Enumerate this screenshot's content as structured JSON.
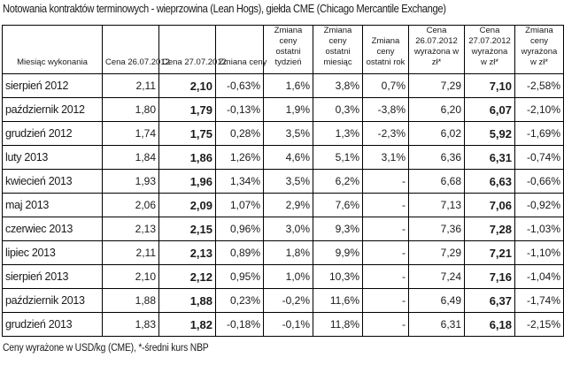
{
  "title": "Notowania kontraktów terminowych - wieprzowina (Lean Hogs), giełda CME (Chicago Mercantile Exchange)",
  "headers": [
    "Miesiąc wykonania",
    "Cena 26.07.2012",
    "Cena 27.07.2012",
    "Zmiana ceny",
    "Zmiana ceny ostatni tydzień",
    "Zmiana ceny ostatni miesiąc",
    "Zmiana ceny ostatni rok",
    "Cena 26.07.2012 wyrażona w zł*",
    "Cena 27.07.2012 wyrażona w zł*",
    "Zmiana ceny wyrażona w zł*"
  ],
  "rows": [
    [
      "sierpień 2012",
      "2,11",
      "2,10",
      "-0,63%",
      "1,6%",
      "3,8%",
      "0,7%",
      "7,29",
      "7,10",
      "-2,58%"
    ],
    [
      "październik 2012",
      "1,80",
      "1,79",
      "-0,13%",
      "1,9%",
      "0,3%",
      "-3,8%",
      "6,20",
      "6,07",
      "-2,10%"
    ],
    [
      "grudzień 2012",
      "1,74",
      "1,75",
      "0,28%",
      "3,5%",
      "1,3%",
      "-2,3%",
      "6,02",
      "5,92",
      "-1,69%"
    ],
    [
      "luty 2013",
      "1,84",
      "1,86",
      "1,26%",
      "4,6%",
      "5,1%",
      "3,1%",
      "6,36",
      "6,31",
      "-0,74%"
    ],
    [
      "kwiecień 2013",
      "1,93",
      "1,96",
      "1,34%",
      "3,5%",
      "6,2%",
      "-",
      "6,68",
      "6,63",
      "-0,66%"
    ],
    [
      "maj 2013",
      "2,06",
      "2,09",
      "1,07%",
      "2,9%",
      "7,6%",
      "-",
      "7,13",
      "7,06",
      "-0,92%"
    ],
    [
      "czerwiec 2013",
      "2,13",
      "2,15",
      "0,96%",
      "3,0%",
      "9,3%",
      "-",
      "7,36",
      "7,28",
      "-1,03%"
    ],
    [
      "lipiec 2013",
      "2,11",
      "2,13",
      "0,89%",
      "1,8%",
      "9,9%",
      "-",
      "7,29",
      "7,21",
      "-1,10%"
    ],
    [
      "sierpień 2013",
      "2,10",
      "2,12",
      "0,95%",
      "1,0%",
      "10,3%",
      "-",
      "7,24",
      "7,16",
      "-1,04%"
    ],
    [
      "październik 2013",
      "1,88",
      "1,88",
      "0,23%",
      "-0,2%",
      "11,6%",
      "-",
      "6,49",
      "6,37",
      "-1,74%"
    ],
    [
      "grudzień 2013",
      "1,83",
      "1,82",
      "-0,18%",
      "-0,1%",
      "11,8%",
      "-",
      "6,31",
      "6,18",
      "-2,15%"
    ]
  ],
  "footnote": "Ceny wyrażone w USD/kg (CME), *-średni kurs NBP"
}
